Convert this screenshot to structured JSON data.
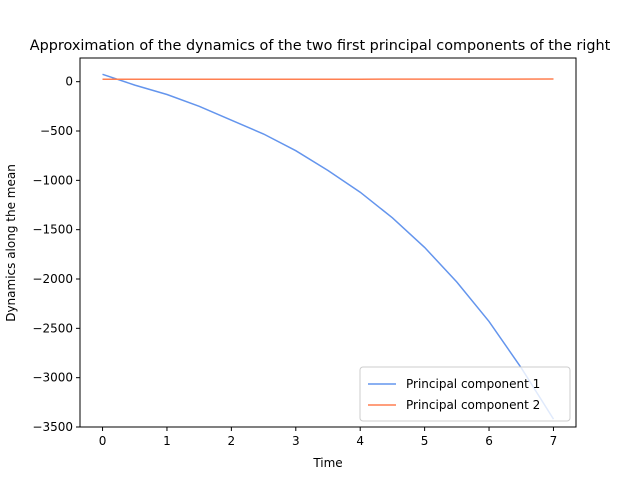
{
  "chart_data": {
    "type": "line",
    "title": "Approximation of the dynamics of the two first principal components of the right",
    "xlabel": "Time",
    "ylabel": "Dynamics along the mean",
    "xlim": [
      -0.35,
      7.35
    ],
    "ylim": [
      -3500,
      240
    ],
    "xticks": [
      0,
      1,
      2,
      3,
      4,
      5,
      6,
      7
    ],
    "yticks": [
      0,
      -500,
      -1000,
      -1500,
      -2000,
      -2500,
      -3000,
      -3500
    ],
    "grid": false,
    "legend_position": "lower-right",
    "series": [
      {
        "name": "Principal component 1",
        "color": "#6495ED",
        "x": [
          0,
          0.5,
          1,
          1.5,
          2,
          2.5,
          3,
          3.5,
          4,
          4.5,
          5,
          5.5,
          6,
          6.5,
          7
        ],
        "y": [
          75,
          -35,
          -130,
          -250,
          -390,
          -530,
          -700,
          -900,
          -1120,
          -1380,
          -1680,
          -2030,
          -2430,
          -2900,
          -3420
        ]
      },
      {
        "name": "Principal component 2",
        "color": "#FF7F50",
        "x": [
          0,
          1,
          2,
          3,
          4,
          5,
          6,
          7
        ],
        "y": [
          24,
          24,
          24,
          25,
          25,
          26,
          26,
          27
        ]
      }
    ]
  }
}
